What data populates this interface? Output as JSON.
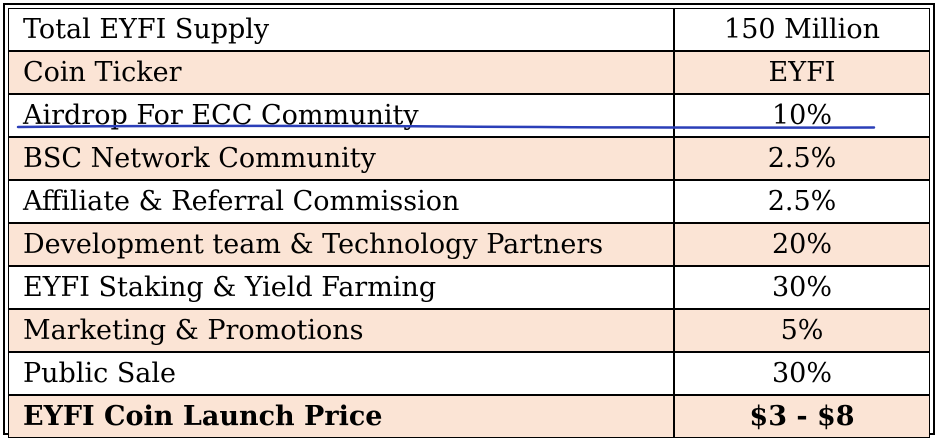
{
  "table": {
    "rows": [
      {
        "label": "Total EYFI Supply",
        "value": "150 Million",
        "shaded": false,
        "bold": false
      },
      {
        "label": "Coin Ticker",
        "value": "EYFI",
        "shaded": true,
        "bold": false
      },
      {
        "label": "Airdrop For ECC Community",
        "value": "10%",
        "shaded": false,
        "bold": false
      },
      {
        "label": "BSC Network Community",
        "value": "2.5%",
        "shaded": true,
        "bold": false
      },
      {
        "label": "Affiliate & Referral Commission",
        "value": "2.5%",
        "shaded": false,
        "bold": false
      },
      {
        "label": "Development team & Technology Partners",
        "value": "20%",
        "shaded": true,
        "bold": false
      },
      {
        "label": "EYFI Staking & Yield Farming",
        "value": "30%",
        "shaded": false,
        "bold": false
      },
      {
        "label": "Marketing & Promotions",
        "value": "5%",
        "shaded": true,
        "bold": false
      },
      {
        "label": "Public Sale",
        "value": "30%",
        "shaded": false,
        "bold": false
      },
      {
        "label": "EYFI Coin Launch Price",
        "value": "$3 - $8",
        "shaded": true,
        "bold": true
      }
    ]
  },
  "colors": {
    "row_shade": "#fbe4d5",
    "pen_underline": "#2b3fb8",
    "border": "#000000"
  }
}
